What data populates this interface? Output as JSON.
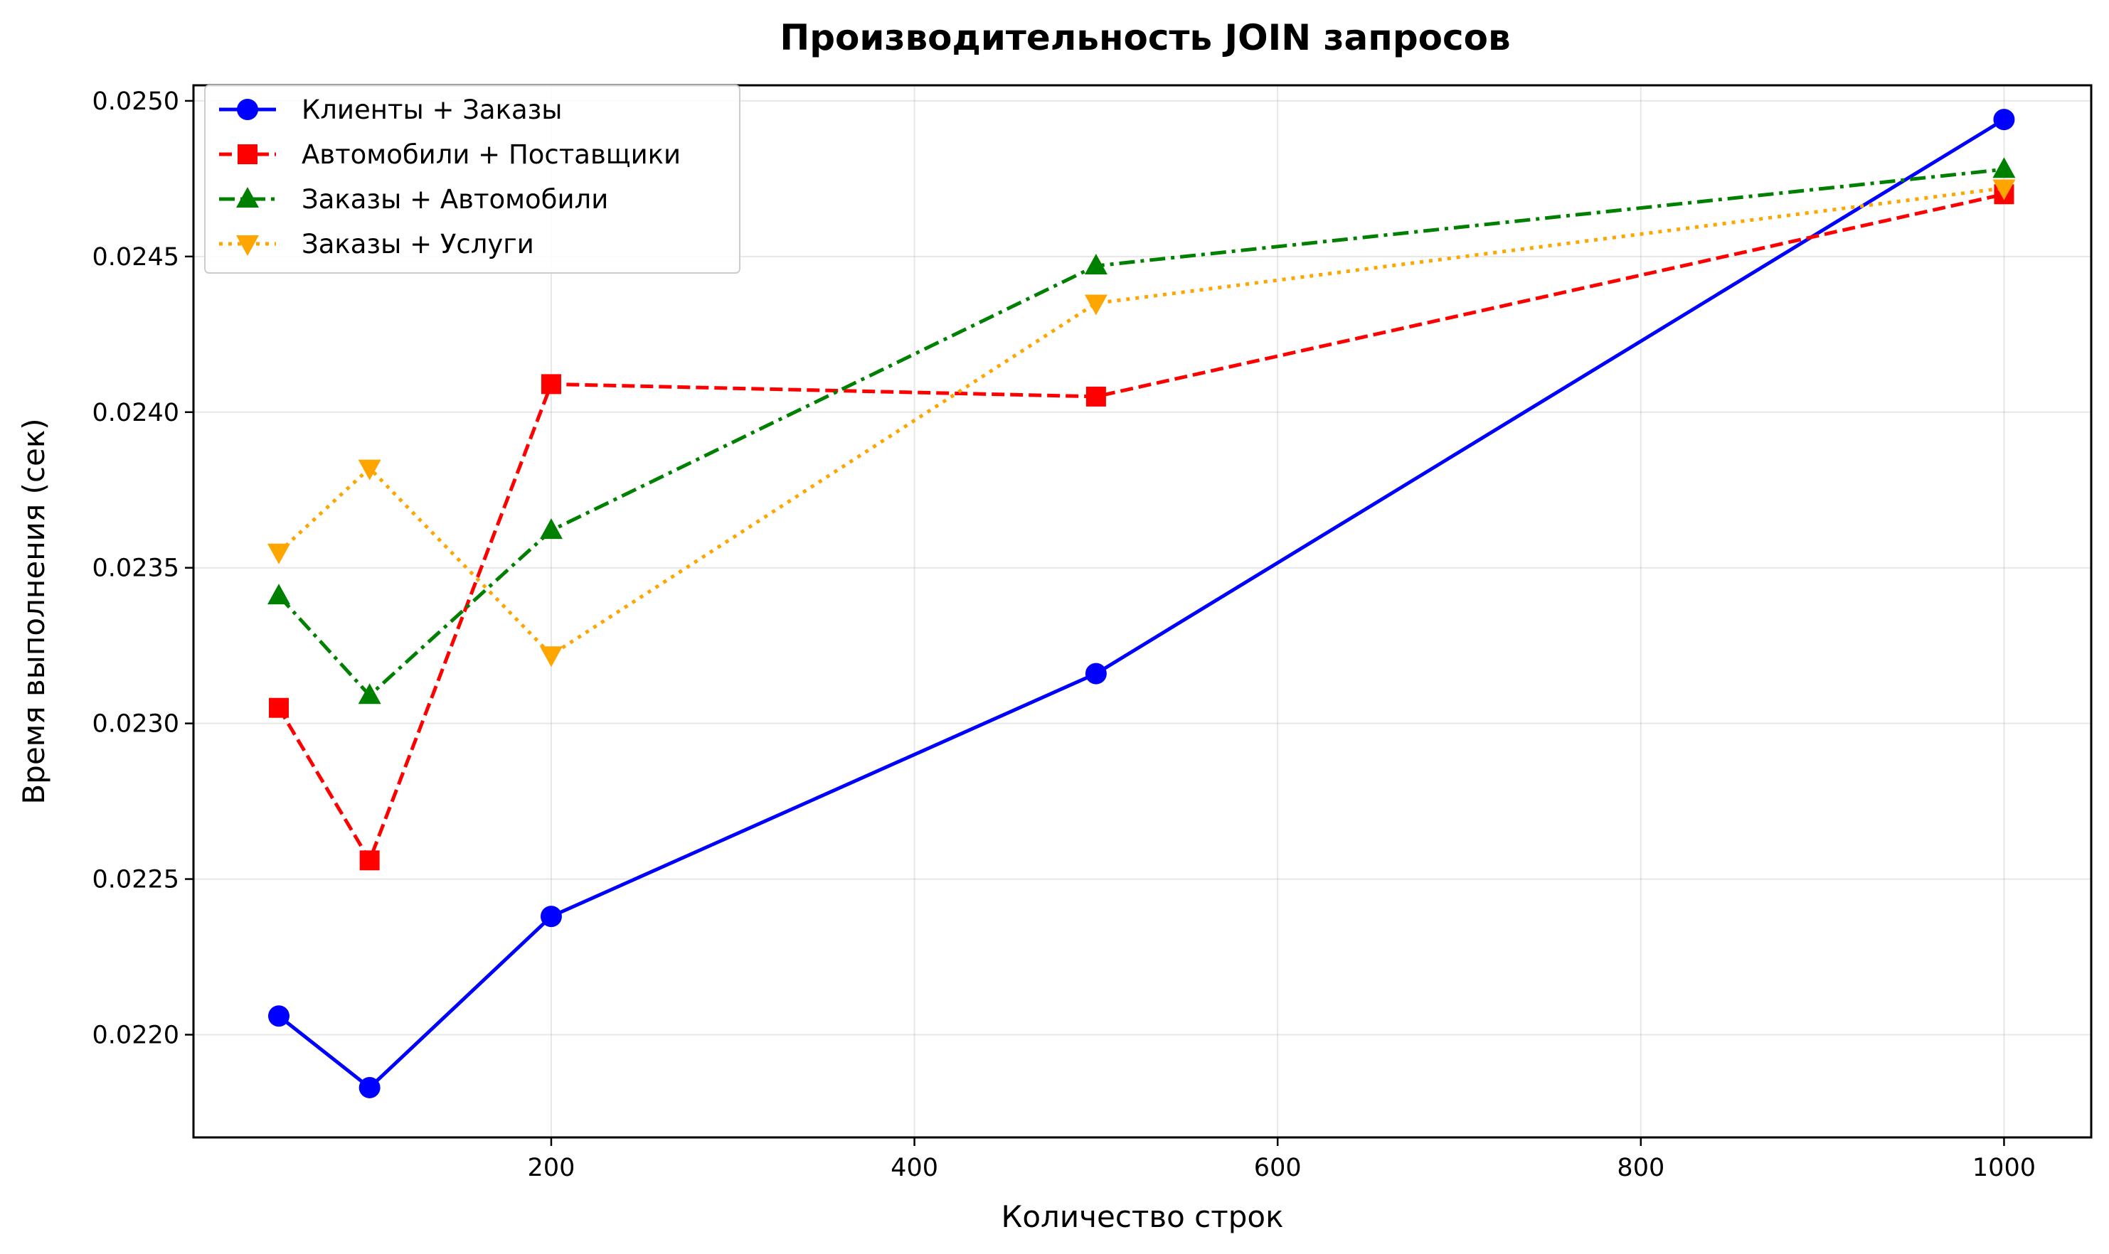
{
  "chart_data": {
    "type": "line",
    "title": "Производительность JOIN запросов",
    "xlabel": "Количество строк",
    "ylabel": "Время выполнения (сек)",
    "xlim": [
      3,
      1048
    ],
    "ylim": [
      0.02167,
      0.02505
    ],
    "xticks": [
      200,
      400,
      600,
      800,
      1000
    ],
    "xtick_labels": [
      "200",
      "400",
      "600",
      "800",
      "1000"
    ],
    "yticks": [
      0.022,
      0.0225,
      0.023,
      0.0235,
      0.024,
      0.0245,
      0.025
    ],
    "ytick_labels": [
      "0.0220",
      "0.0225",
      "0.0230",
      "0.0235",
      "0.0240",
      "0.0245",
      "0.0250"
    ],
    "grid": true,
    "legend_position": "top-left",
    "x": [
      50,
      100,
      200,
      500,
      1000
    ],
    "series": [
      {
        "name": "Клиенты + Заказы",
        "values": [
          0.02206,
          0.02183,
          0.02238,
          0.02316,
          0.02494
        ],
        "color": "#0000ff",
        "line_style": "solid",
        "marker": "circle"
      },
      {
        "name": "Автомобили + Поставщики",
        "values": [
          0.02305,
          0.02256,
          0.02409,
          0.02405,
          0.0247
        ],
        "color": "#ff0000",
        "line_style": "dashed",
        "marker": "square"
      },
      {
        "name": "Заказы + Автомобили",
        "values": [
          0.02341,
          0.02309,
          0.02362,
          0.02447,
          0.02478
        ],
        "color": "#008000",
        "line_style": "dash-dot",
        "marker": "triangle-up"
      },
      {
        "name": "Заказы + Услуги",
        "values": [
          0.02355,
          0.02382,
          0.02322,
          0.02435,
          0.02472
        ],
        "color": "#ffa500",
        "line_style": "dotted",
        "marker": "triangle-down"
      }
    ]
  }
}
